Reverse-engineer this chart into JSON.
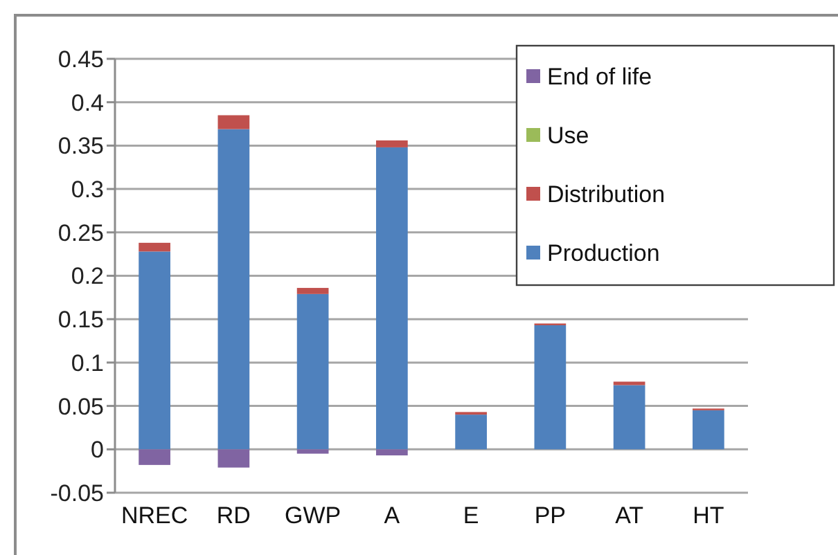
{
  "chart_data": {
    "type": "bar",
    "stacked": true,
    "categories": [
      "NREC",
      "RD",
      "GWP",
      "A",
      "E",
      "PP",
      "AT",
      "HT"
    ],
    "series": [
      {
        "name": "Production",
        "color": "#4f81bd",
        "values": [
          0.228,
          0.369,
          0.179,
          0.348,
          0.04,
          0.143,
          0.074,
          0.045
        ]
      },
      {
        "name": "Distribution",
        "color": "#c0504d",
        "values": [
          0.01,
          0.016,
          0.007,
          0.008,
          0.003,
          0.002,
          0.004,
          0.002
        ]
      },
      {
        "name": "Use",
        "color": "#9bbb59",
        "values": [
          0,
          0,
          0,
          0,
          0,
          0,
          0,
          0
        ]
      },
      {
        "name": "End of life",
        "color": "#8064a2",
        "values": [
          -0.018,
          -0.021,
          -0.005,
          -0.007,
          0,
          0,
          0,
          0
        ]
      }
    ],
    "ylim": [
      -0.05,
      0.45
    ],
    "yticks": [
      -0.05,
      0,
      0.05,
      0.1,
      0.15,
      0.2,
      0.25,
      0.3,
      0.35,
      0.4,
      0.45
    ],
    "grid": "y",
    "legend": "top right"
  }
}
